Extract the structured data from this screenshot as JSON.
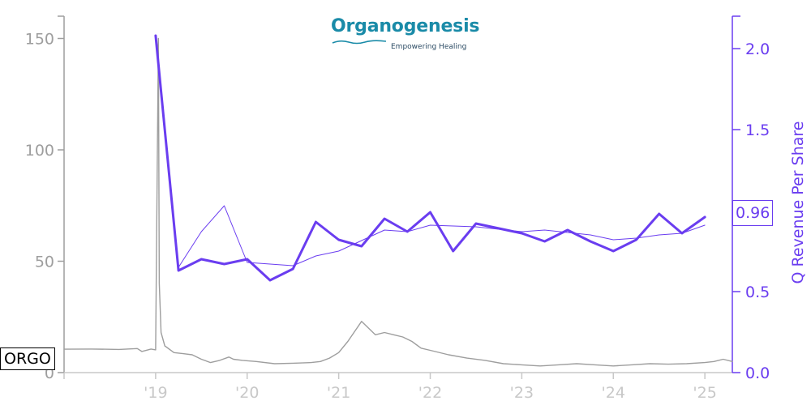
{
  "logo": {
    "name": "Organogenesis",
    "tagline": "Empowering Healing"
  },
  "ticker": "ORGO",
  "last_value_label": "0.96",
  "colors": {
    "price": "#9e9e9e",
    "revenue": "#6a3df0",
    "logo": "#1a8ba8"
  },
  "chart_data": {
    "type": "line",
    "title": "",
    "xlabel": "",
    "x_ticks": [
      "'19",
      "'20",
      "'21",
      "'22",
      "'23",
      "'24",
      "'25"
    ],
    "x_range": [
      2018.0,
      2025.3
    ],
    "left_axis": {
      "label": "",
      "range": [
        0,
        160
      ],
      "ticks": [
        0,
        50,
        100,
        150
      ]
    },
    "right_axis": {
      "label": "Q Revenue Per Share",
      "range": [
        0,
        2.2
      ],
      "ticks": [
        "0.0",
        "0.5",
        "1.0",
        "1.5",
        "2.0"
      ]
    },
    "series": [
      {
        "axis": "left",
        "style": "price",
        "points": [
          [
            2018.0,
            10.5
          ],
          [
            2018.3,
            10.6
          ],
          [
            2018.6,
            10.4
          ],
          [
            2018.8,
            10.8
          ],
          [
            2018.85,
            9.5
          ],
          [
            2018.95,
            10.6
          ],
          [
            2019.0,
            10.2
          ],
          [
            2019.03,
            150
          ],
          [
            2019.04,
            40
          ],
          [
            2019.06,
            18
          ],
          [
            2019.1,
            12
          ],
          [
            2019.2,
            9
          ],
          [
            2019.3,
            8.5
          ],
          [
            2019.4,
            8
          ],
          [
            2019.5,
            6
          ],
          [
            2019.6,
            4.5
          ],
          [
            2019.7,
            5.5
          ],
          [
            2019.8,
            7
          ],
          [
            2019.85,
            6
          ],
          [
            2019.95,
            5.5
          ],
          [
            2020.1,
            5
          ],
          [
            2020.3,
            4
          ],
          [
            2020.5,
            4.2
          ],
          [
            2020.7,
            4.5
          ],
          [
            2020.8,
            5
          ],
          [
            2020.9,
            6.5
          ],
          [
            2021.0,
            9
          ],
          [
            2021.1,
            14
          ],
          [
            2021.2,
            20
          ],
          [
            2021.25,
            23
          ],
          [
            2021.3,
            21
          ],
          [
            2021.4,
            17
          ],
          [
            2021.5,
            18
          ],
          [
            2021.6,
            17
          ],
          [
            2021.7,
            16
          ],
          [
            2021.8,
            14
          ],
          [
            2021.9,
            11
          ],
          [
            2022.0,
            10
          ],
          [
            2022.2,
            8
          ],
          [
            2022.4,
            6.5
          ],
          [
            2022.6,
            5.5
          ],
          [
            2022.8,
            4
          ],
          [
            2023.0,
            3.5
          ],
          [
            2023.2,
            3
          ],
          [
            2023.4,
            3.5
          ],
          [
            2023.6,
            4
          ],
          [
            2023.8,
            3.5
          ],
          [
            2024.0,
            3
          ],
          [
            2024.2,
            3.5
          ],
          [
            2024.4,
            4
          ],
          [
            2024.6,
            3.8
          ],
          [
            2024.8,
            4
          ],
          [
            2025.0,
            4.5
          ],
          [
            2025.1,
            5
          ],
          [
            2025.2,
            6
          ],
          [
            2025.3,
            5
          ]
        ]
      },
      {
        "axis": "right",
        "name": "",
        "style": "thick",
        "points": [
          [
            2019.0,
            2.08
          ],
          [
            2019.25,
            0.63
          ],
          [
            2019.5,
            0.7
          ],
          [
            2019.75,
            0.67
          ],
          [
            2020.0,
            0.7
          ],
          [
            2020.25,
            0.57
          ],
          [
            2020.5,
            0.64
          ],
          [
            2020.75,
            0.93
          ],
          [
            2021.0,
            0.82
          ],
          [
            2021.25,
            0.78
          ],
          [
            2021.5,
            0.95
          ],
          [
            2021.75,
            0.87
          ],
          [
            2022.0,
            0.99
          ],
          [
            2022.25,
            0.75
          ],
          [
            2022.5,
            0.92
          ],
          [
            2022.75,
            0.89
          ],
          [
            2023.0,
            0.86
          ],
          [
            2023.25,
            0.81
          ],
          [
            2023.5,
            0.88
          ],
          [
            2023.75,
            0.81
          ],
          [
            2024.0,
            0.75
          ],
          [
            2024.25,
            0.82
          ],
          [
            2024.5,
            0.98
          ],
          [
            2024.75,
            0.86
          ],
          [
            2025.0,
            0.96
          ]
        ]
      },
      {
        "axis": "right",
        "name": "",
        "style": "thin",
        "points": [
          [
            2019.25,
            0.65
          ],
          [
            2019.5,
            0.87
          ],
          [
            2019.75,
            1.03
          ],
          [
            2020.0,
            0.68
          ],
          [
            2020.5,
            0.66
          ],
          [
            2020.75,
            0.72
          ],
          [
            2021.0,
            0.75
          ],
          [
            2021.5,
            0.88
          ],
          [
            2021.75,
            0.87
          ],
          [
            2022.0,
            0.91
          ],
          [
            2022.5,
            0.9
          ],
          [
            2023.0,
            0.87
          ],
          [
            2023.25,
            0.88
          ],
          [
            2023.75,
            0.85
          ],
          [
            2024.0,
            0.82
          ],
          [
            2024.25,
            0.83
          ],
          [
            2024.5,
            0.85
          ],
          [
            2024.75,
            0.86
          ],
          [
            2025.0,
            0.91
          ]
        ]
      }
    ]
  }
}
